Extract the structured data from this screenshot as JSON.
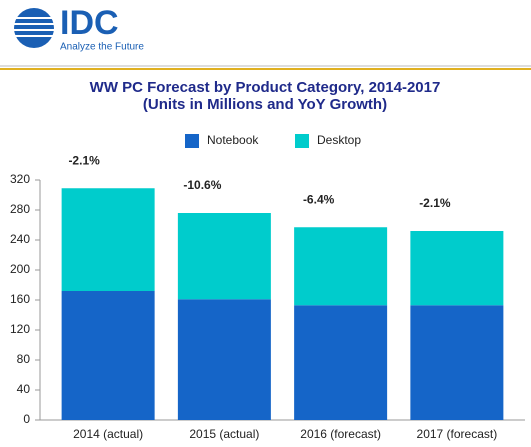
{
  "header": {
    "logo": "IDC",
    "tagline": "Analyze the Future"
  },
  "chart_data": {
    "type": "stacked_bar",
    "title": [
      "WW PC Forecast by Product Category, 2014-2017",
      "(Units in Millions and YoY Growth)"
    ],
    "categories": [
      "2014 (actual)",
      "2015 (actual)",
      "2016 (forecast)",
      "2017 (forecast)"
    ],
    "series": [
      {
        "name": "Notebook",
        "color": "#1565c8",
        "values": [
          172,
          161,
          153,
          153
        ]
      },
      {
        "name": "Desktop",
        "color": "#00cccc",
        "values": [
          137,
          115,
          104,
          99
        ]
      }
    ],
    "annotations": [
      "-2.1%",
      "-10.6%",
      "-6.4%",
      "-2.1%"
    ],
    "ylim": [
      0,
      320
    ],
    "yticks": [
      0,
      40,
      80,
      120,
      160,
      200,
      240,
      280,
      320
    ],
    "grid": false,
    "legend": "top"
  }
}
